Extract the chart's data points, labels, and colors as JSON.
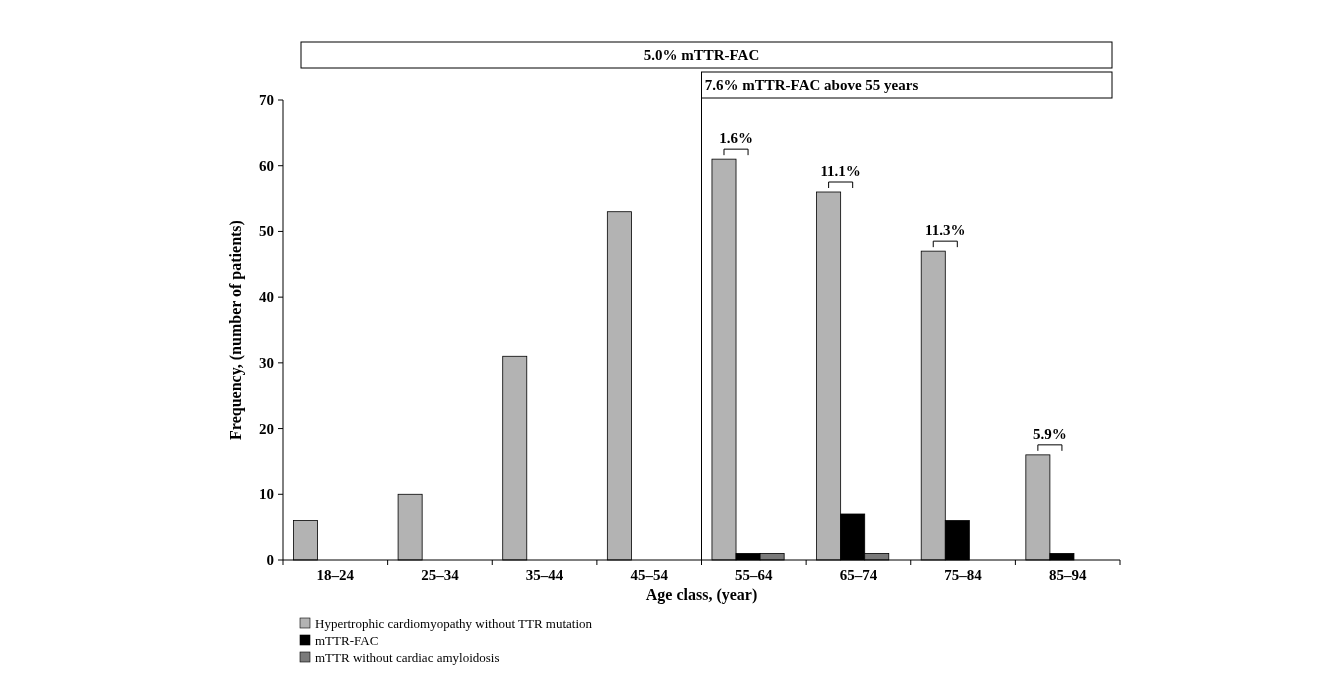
{
  "chart_data": {
    "type": "bar",
    "xlabel": "Age class, (year)",
    "ylabel": "Frequency, (number of patients)",
    "categories": [
      "18–24",
      "25–34",
      "35–44",
      "45–54",
      "55–64",
      "65–74",
      "75–84",
      "85–94"
    ],
    "series": [
      {
        "name": "Hypertrophic cardiomyopathy without TTR mutation",
        "color": "#b3b3b3",
        "values": [
          6,
          10,
          31,
          53,
          61,
          56,
          47,
          16
        ]
      },
      {
        "name": "mTTR-FAC",
        "color": "#000000",
        "values": [
          0,
          0,
          0,
          0,
          1,
          7,
          6,
          1
        ]
      },
      {
        "name": "mTTR without cardiac amyloidosis",
        "color": "#7a7a7a",
        "values": [
          0,
          0,
          0,
          0,
          1,
          1,
          0,
          0
        ]
      }
    ],
    "ylim": [
      0,
      70
    ],
    "yticks": [
      0,
      10,
      20,
      30,
      40,
      50,
      60,
      70
    ],
    "legend": "bottom left",
    "grid": false,
    "annotations": [
      "5.0% mTTR-FAC",
      "7.6% mTTR-FAC above 55 years",
      "1.6%",
      "11.1%",
      "11.3%",
      "5.9%"
    ]
  }
}
